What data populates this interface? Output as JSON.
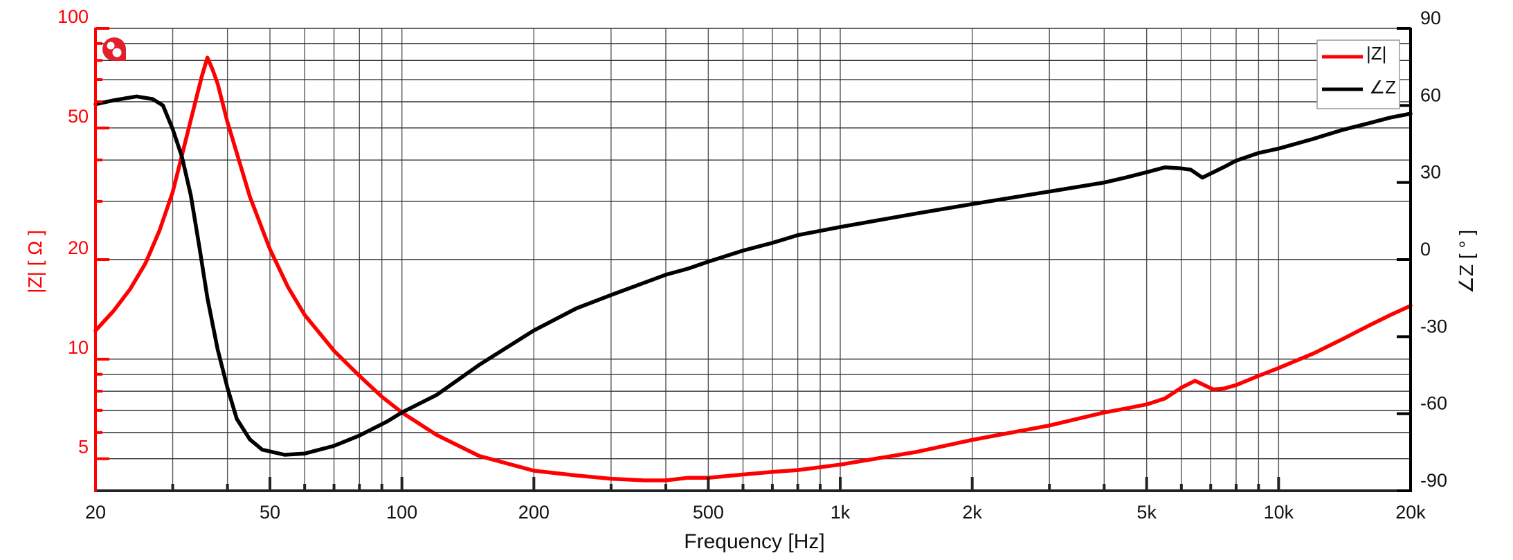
{
  "chart_data": {
    "type": "line",
    "title": "",
    "xlabel": "Frequency [Hz]",
    "ylabel_left": "|Z| [ Ω ]",
    "ylabel_right": "∠Z [ ° ]",
    "x_scale": "log",
    "xlim": [
      20,
      20000
    ],
    "ylim_left": [
      4,
      100
    ],
    "ylim_left_scale": "log",
    "ylim_right": [
      -90,
      90
    ],
    "grid": true,
    "legend_position": "top-right",
    "x_ticks": [
      {
        "value": 20,
        "label": "20"
      },
      {
        "value": 50,
        "label": "50"
      },
      {
        "value": 100,
        "label": "100"
      },
      {
        "value": 200,
        "label": "200"
      },
      {
        "value": 500,
        "label": "500"
      },
      {
        "value": 1000,
        "label": "1k"
      },
      {
        "value": 2000,
        "label": "2k"
      },
      {
        "value": 5000,
        "label": "5k"
      },
      {
        "value": 10000,
        "label": "10k"
      },
      {
        "value": 20000,
        "label": "20k"
      }
    ],
    "y_left_ticks": [
      {
        "value": 100,
        "label": "100"
      },
      {
        "value": 50,
        "label": "50"
      },
      {
        "value": 20,
        "label": "20"
      },
      {
        "value": 10,
        "label": "10"
      },
      {
        "value": 5,
        "label": "5"
      }
    ],
    "y_right_ticks": [
      {
        "value": 90,
        "label": "90"
      },
      {
        "value": 60,
        "label": "60"
      },
      {
        "value": 30,
        "label": "30"
      },
      {
        "value": 0,
        "label": "0"
      },
      {
        "value": -30,
        "label": "-30"
      },
      {
        "value": -60,
        "label": "-60"
      },
      {
        "value": -90,
        "label": "-90"
      }
    ],
    "series": [
      {
        "name": "|Z|",
        "axis": "left",
        "color": "#ff0000",
        "unit": "Ω",
        "points": [
          [
            20,
            12.2
          ],
          [
            22,
            14.0
          ],
          [
            24,
            16.3
          ],
          [
            26,
            19.5
          ],
          [
            28,
            24.5
          ],
          [
            30,
            32
          ],
          [
            32,
            45
          ],
          [
            34,
            62
          ],
          [
            35,
            72
          ],
          [
            36,
            81.6
          ],
          [
            37,
            75
          ],
          [
            38,
            68
          ],
          [
            40,
            52
          ],
          [
            42,
            42
          ],
          [
            45,
            31
          ],
          [
            50,
            21.5
          ],
          [
            55,
            16.5
          ],
          [
            60,
            13.6
          ],
          [
            70,
            10.6
          ],
          [
            80,
            8.9
          ],
          [
            90,
            7.7
          ],
          [
            100,
            6.9
          ],
          [
            120,
            5.9
          ],
          [
            150,
            5.1
          ],
          [
            200,
            4.6
          ],
          [
            250,
            4.45
          ],
          [
            300,
            4.35
          ],
          [
            357,
            4.3
          ],
          [
            400,
            4.3
          ],
          [
            450,
            4.38
          ],
          [
            500,
            4.38
          ],
          [
            600,
            4.48
          ],
          [
            700,
            4.56
          ],
          [
            800,
            4.62
          ],
          [
            1000,
            4.8
          ],
          [
            1500,
            5.25
          ],
          [
            2000,
            5.7
          ],
          [
            3000,
            6.3
          ],
          [
            4000,
            6.9
          ],
          [
            4500,
            7.1
          ],
          [
            5000,
            7.3
          ],
          [
            5500,
            7.6
          ],
          [
            6000,
            8.2
          ],
          [
            6450,
            8.6
          ],
          [
            7100,
            8.1
          ],
          [
            7500,
            8.15
          ],
          [
            8000,
            8.35
          ],
          [
            9000,
            8.9
          ],
          [
            10000,
            9.4
          ],
          [
            12000,
            10.4
          ],
          [
            14000,
            11.5
          ],
          [
            16000,
            12.6
          ],
          [
            18000,
            13.6
          ],
          [
            20000,
            14.5
          ]
        ]
      },
      {
        "name": "∠Z",
        "axis": "right",
        "color": "#000000",
        "unit": "°",
        "points": [
          [
            20,
            60.5
          ],
          [
            22,
            62
          ],
          [
            24.8,
            63.5
          ],
          [
            27,
            62.5
          ],
          [
            28.5,
            60
          ],
          [
            30,
            50.8
          ],
          [
            31.5,
            40
          ],
          [
            33,
            25
          ],
          [
            34.5,
            5
          ],
          [
            36,
            -15
          ],
          [
            38,
            -35
          ],
          [
            40,
            -50
          ],
          [
            42,
            -62
          ],
          [
            45,
            -70
          ],
          [
            48,
            -74
          ],
          [
            54,
            -76
          ],
          [
            60,
            -75.5
          ],
          [
            70,
            -72.5
          ],
          [
            80,
            -68.5
          ],
          [
            92.6,
            -63
          ],
          [
            100,
            -59.5
          ],
          [
            120,
            -52.7
          ],
          [
            150,
            -41
          ],
          [
            200,
            -27.6
          ],
          [
            250,
            -19
          ],
          [
            300,
            -13.8
          ],
          [
            400,
            -5.9
          ],
          [
            450,
            -3.5
          ],
          [
            500,
            -0.8
          ],
          [
            600,
            3.5
          ],
          [
            700,
            6.5
          ],
          [
            800,
            9.5
          ],
          [
            1000,
            12.7
          ],
          [
            1500,
            18
          ],
          [
            2000,
            21.6
          ],
          [
            3000,
            26.5
          ],
          [
            4000,
            30
          ],
          [
            4500,
            32
          ],
          [
            5000,
            34
          ],
          [
            5500,
            35.9
          ],
          [
            6000,
            35.5
          ],
          [
            6300,
            35
          ],
          [
            6700,
            31.9
          ],
          [
            7500,
            36
          ],
          [
            8000,
            38.5
          ],
          [
            9000,
            41.5
          ],
          [
            10000,
            43.2
          ],
          [
            12000,
            47
          ],
          [
            14000,
            50.5
          ],
          [
            16000,
            53
          ],
          [
            18000,
            55.3
          ],
          [
            20000,
            56.8
          ]
        ]
      }
    ],
    "annotations": {
      "resonance_peak": {
        "frequency_hz": 36,
        "impedance_ohm": 81.6
      },
      "impedance_minimum": {
        "frequency_hz": 357,
        "impedance_ohm": 4.3
      }
    }
  },
  "axes": {
    "x_title": "Frequency [Hz]",
    "left_title": "|Z| [ Ω ]",
    "right_title": "∠Z [ ° ]"
  },
  "legend": {
    "items": [
      {
        "label": "|Z|",
        "color": "#ff0000"
      },
      {
        "label": "∠Z",
        "color": "#000000"
      }
    ]
  },
  "logo": {
    "icon": "brand-logo-icon",
    "color": "#e0202a"
  },
  "colors": {
    "impedance": "#ff0000",
    "phase": "#000000",
    "grid": "#333333",
    "left_axis": "#ff0000",
    "right_axis": "#000000"
  }
}
